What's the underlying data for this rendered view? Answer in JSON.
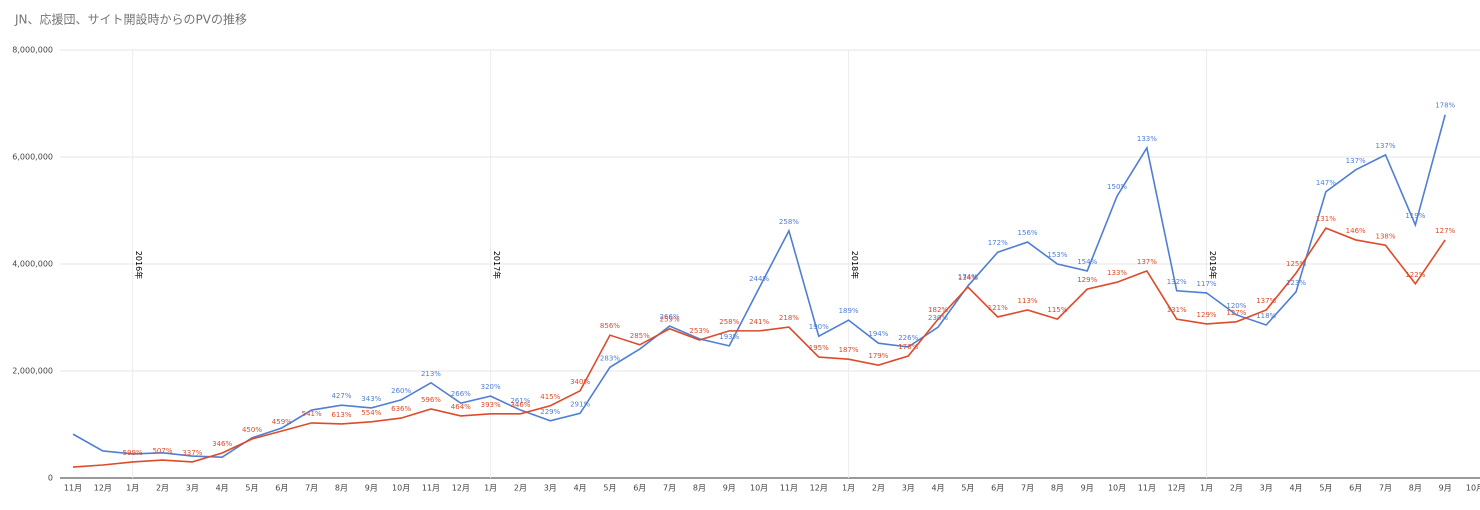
{
  "chart_data": {
    "type": "line",
    "title": "JN、応援団、サイト開設時からのPVの推移",
    "categories": [
      "11月",
      "12月",
      "1月",
      "2月",
      "3月",
      "4月",
      "5月",
      "6月",
      "7月",
      "8月",
      "9月",
      "10月",
      "11月",
      "12月",
      "1月",
      "2月",
      "3月",
      "4月",
      "5月",
      "6月",
      "7月",
      "8月",
      "9月",
      "10月",
      "11月",
      "12月",
      "1月",
      "2月",
      "3月",
      "4月",
      "5月",
      "6月",
      "7月",
      "8月",
      "9月",
      "10月",
      "11月",
      "12月",
      "1月",
      "2月",
      "3月",
      "4月",
      "5月",
      "6月",
      "7月",
      "8月",
      "9月",
      "10月"
    ],
    "annotations": [
      "2016年",
      "2017年",
      "2018年",
      "2019年"
    ],
    "ylim": [
      0,
      8000000
    ],
    "yticks": [
      0,
      {
        "value": 2000000,
        "label": "2,000,000"
      },
      {
        "value": 4000000,
        "label": "4,000,000"
      },
      {
        "value": 6000000,
        "label": "6,000,000"
      },
      {
        "value": 8000000,
        "label": "8,000,000"
      }
    ],
    "grid": true,
    "series": [
      {
        "color": "#4f7fd4",
        "values": [
          820000,
          505000,
          450000,
          470000,
          410000,
          390000,
          750000,
          935000,
          1270000,
          1360000,
          1310000,
          1460000,
          1780000,
          1400000,
          1530000,
          1270000,
          1070000,
          1210000,
          2070000,
          2410000,
          2840000,
          2600000,
          2470000,
          3550000,
          4620000,
          2650000,
          2950000,
          2520000,
          2450000,
          2820000,
          3590000,
          4220000,
          4410000,
          4000000,
          3870000,
          5270000,
          6170000,
          3500000,
          3460000,
          3050000,
          2860000,
          3480000,
          5350000,
          5760000,
          6040000,
          4730000,
          6790000,
          null
        ],
        "point_labels": [
          null,
          null,
          null,
          null,
          null,
          null,
          null,
          null,
          null,
          "427%",
          "343%",
          "260%",
          "213%",
          "266%",
          "320%",
          "261%",
          "229%",
          "291%",
          "283%",
          null,
          "266%",
          null,
          "193%",
          "244%",
          "258%",
          "190%",
          "189%",
          "194%",
          "226%",
          "230%",
          "174%",
          "172%",
          "156%",
          "153%",
          "154%",
          "150%",
          "133%",
          "132%",
          "117%",
          "120%",
          "118%",
          "123%",
          "147%",
          "137%",
          "137%",
          "119%",
          "178%",
          null
        ]
      },
      {
        "color": "#dd4b2a",
        "values": [
          205000,
          243000,
          300000,
          336000,
          300000,
          467000,
          729000,
          878000,
          1030000,
          1010000,
          1050000,
          1120000,
          1290000,
          1160000,
          1200000,
          1200000,
          1350000,
          1630000,
          2670000,
          2490000,
          2790000,
          2580000,
          2750000,
          2750000,
          2820000,
          2260000,
          2220000,
          2110000,
          2280000,
          2970000,
          3570000,
          3010000,
          3140000,
          2970000,
          3530000,
          3660000,
          3870000,
          2970000,
          2880000,
          2920000,
          3140000,
          3830000,
          4670000,
          4450000,
          4350000,
          3630000,
          4450000,
          null
        ],
        "point_labels": [
          null,
          null,
          "599%",
          "507%",
          "337%",
          "346%",
          "450%",
          "459%",
          "541%",
          "613%",
          "554%",
          "636%",
          "596%",
          "464%",
          "393%",
          "346%",
          "415%",
          "340%",
          "856%",
          "285%",
          "259%",
          "253%",
          "258%",
          "241%",
          "218%",
          "195%",
          "187%",
          "179%",
          "176%",
          "182%",
          "134%",
          "121%",
          "113%",
          "115%",
          "129%",
          "133%",
          "137%",
          "131%",
          "129%",
          "127%",
          "137%",
          "125%",
          "131%",
          "146%",
          "138%",
          "122%",
          "127%",
          null
        ]
      }
    ]
  }
}
